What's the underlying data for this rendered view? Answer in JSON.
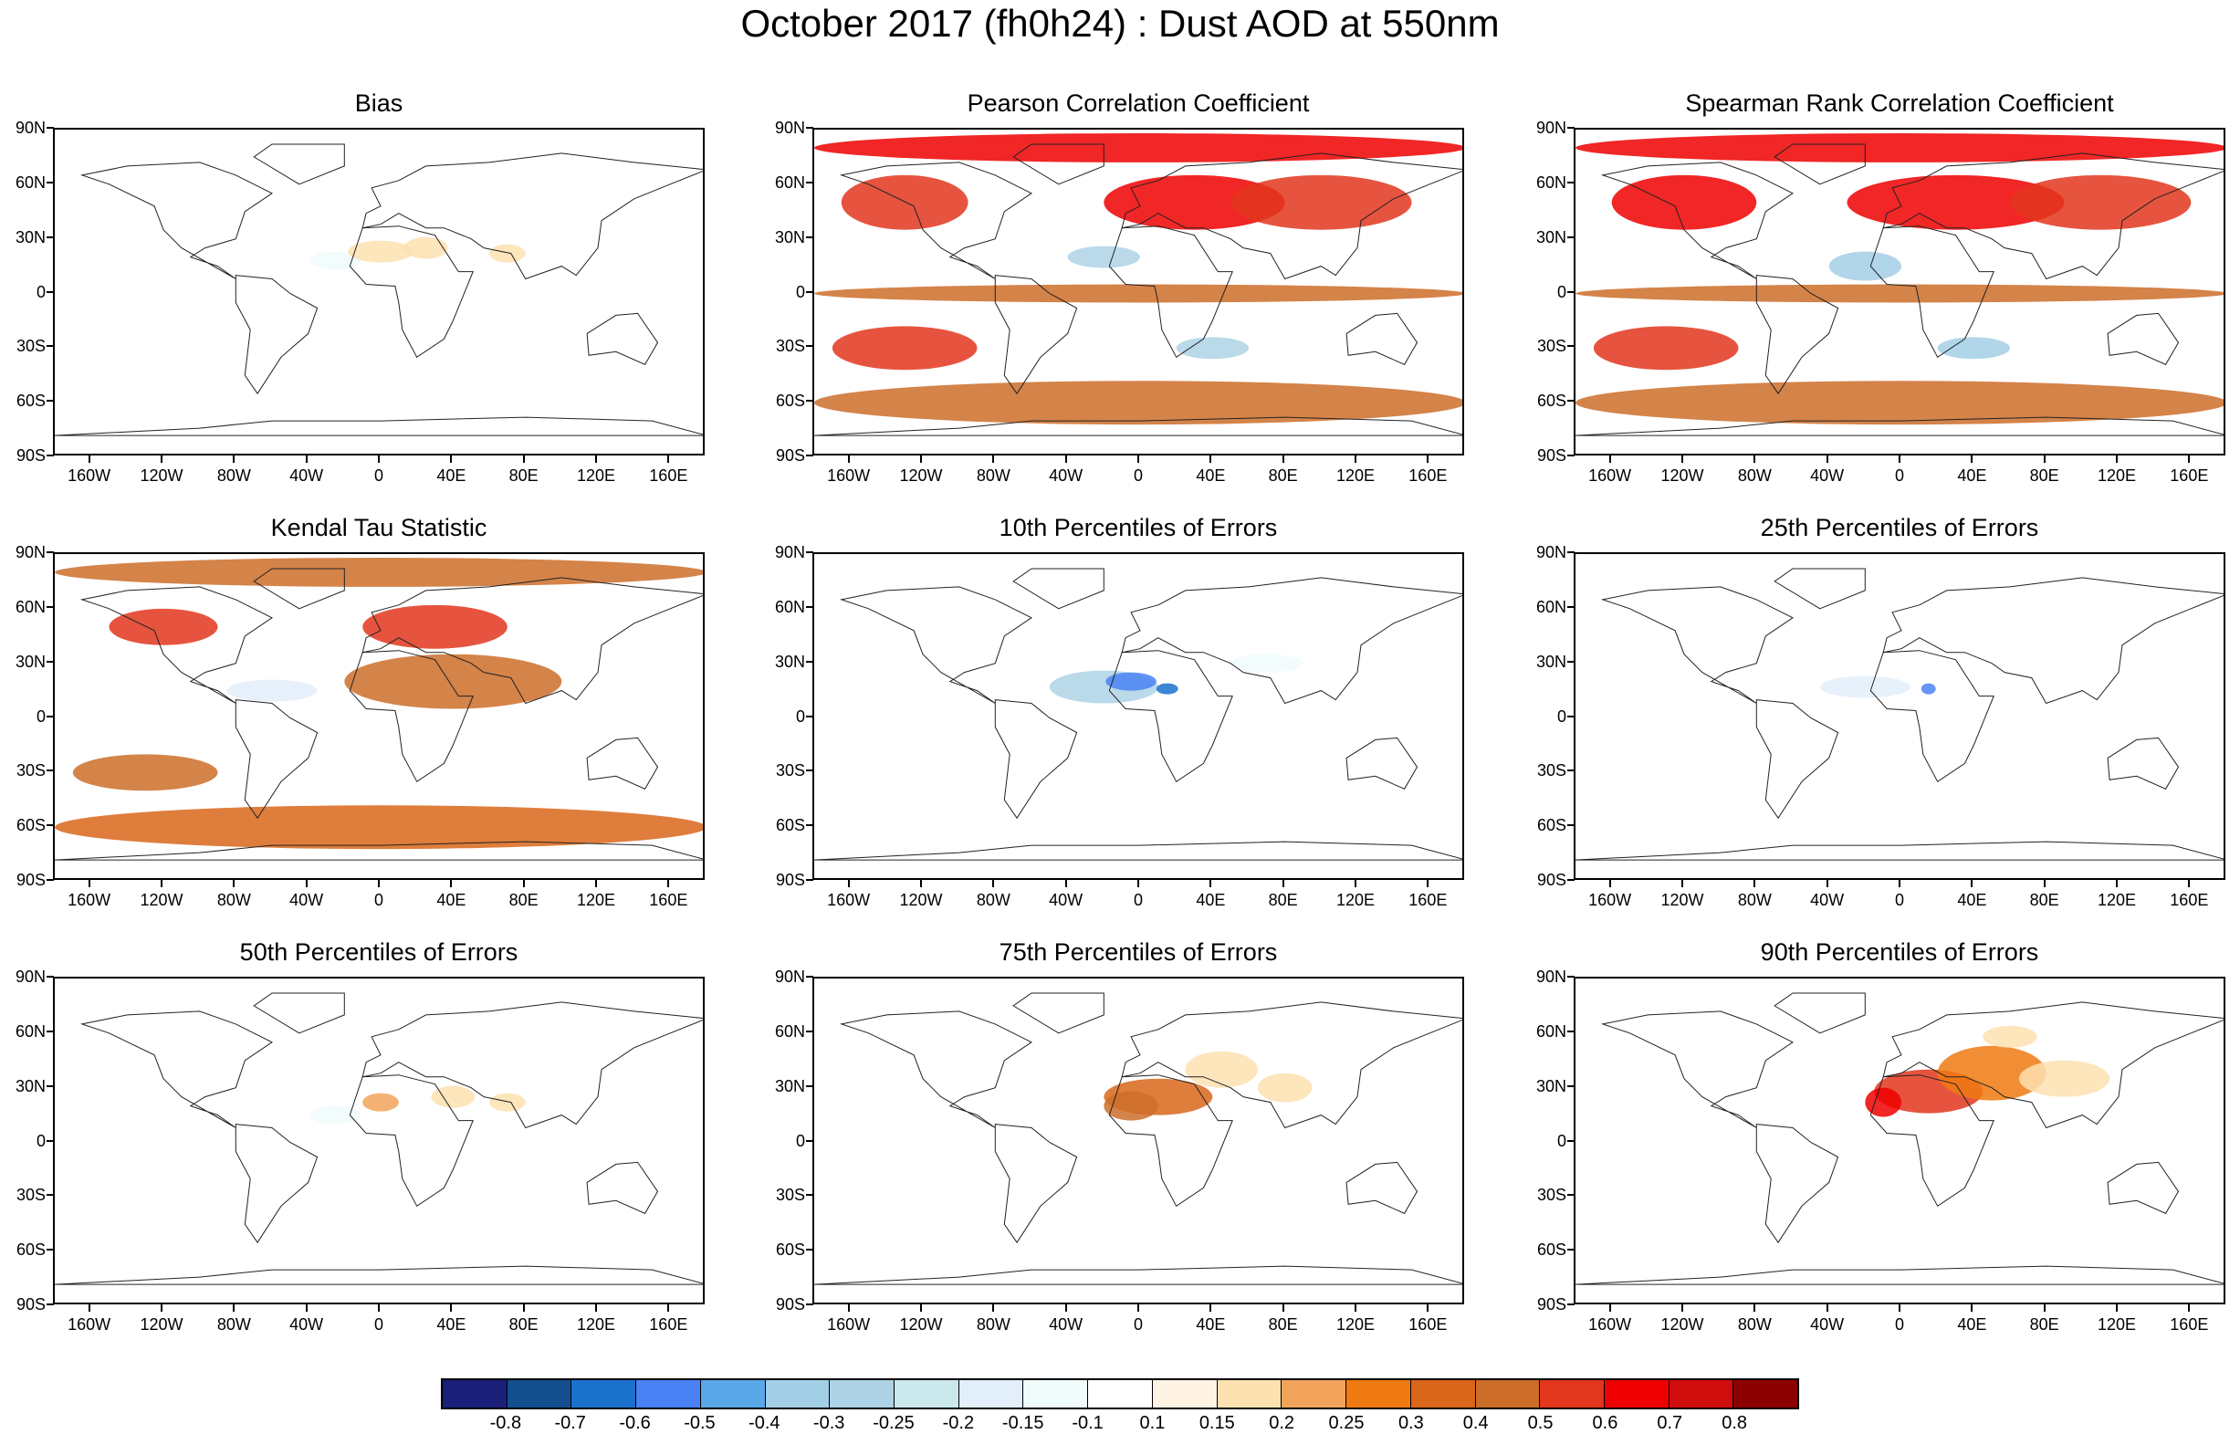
{
  "title": "October 2017 (fh0h24) : Dust AOD at 550nm",
  "lat_ticks": [
    "90N",
    "60N",
    "30N",
    "0",
    "30S",
    "60S",
    "90S"
  ],
  "lon_ticks": [
    "160W",
    "120W",
    "80W",
    "40W",
    "0",
    "40E",
    "80E",
    "120E",
    "160E"
  ],
  "colorbar": {
    "colors": [
      "#1a1f7a",
      "#134f8f",
      "#1a72cc",
      "#4a82f5",
      "#5aa7e8",
      "#a3cfe6",
      "#aed3e6",
      "#cbe9ec",
      "#e2eefa",
      "#f0fcfc",
      "#ffffff",
      "#fff4e4",
      "#fde1b0",
      "#f1a35c",
      "#ef7a12",
      "#d9661a",
      "#cc6d29",
      "#e2361d",
      "#ef0000",
      "#cf0d0d",
      "#8b0000"
    ],
    "labels": [
      "-0.8",
      "-0.7",
      "-0.6",
      "-0.5",
      "-0.4",
      "-0.3",
      "-0.25",
      "-0.2",
      "-0.15",
      "-0.1",
      "0.1",
      "0.15",
      "0.2",
      "0.25",
      "0.3",
      "0.4",
      "0.5",
      "0.6",
      "0.7",
      "0.8"
    ]
  },
  "chart_data": [
    {
      "type": "heatmap",
      "title": "Bias",
      "colors": [
        "#ffffff",
        "#fde1b0",
        "#cbe9ec",
        "#ef7a12",
        "#e2361d"
      ],
      "lon_range": [
        -180,
        180
      ],
      "lat_range": [
        -90,
        90
      ],
      "grid": false,
      "fields": [
        {
          "lon": -25,
          "lat": 18,
          "value": -0.15,
          "rlon": 14,
          "rlat": 5
        },
        {
          "lon": 0,
          "lat": 23,
          "value": 0.15,
          "rlon": 18,
          "rlat": 6
        },
        {
          "lon": 25,
          "lat": 25,
          "value": 0.15,
          "rlon": 12,
          "rlat": 6
        },
        {
          "lon": 70,
          "lat": 22,
          "value": 0.15,
          "rlon": 10,
          "rlat": 5
        }
      ]
    },
    {
      "type": "heatmap",
      "title": "Pearson Correlation Coefficient",
      "colors": [
        "#cc6d29",
        "#e2361d",
        "#ffffff",
        "#5aa7e8"
      ],
      "lon_range": [
        -180,
        180
      ],
      "lat_range": [
        -90,
        90
      ],
      "grid": false,
      "fields": [
        {
          "lon": 0,
          "lat": 80,
          "value": 0.6,
          "rlon": 180,
          "rlat": 8
        },
        {
          "lon": -130,
          "lat": 50,
          "value": 0.5,
          "rlon": 35,
          "rlat": 15
        },
        {
          "lon": 30,
          "lat": 50,
          "value": 0.6,
          "rlon": 50,
          "rlat": 15
        },
        {
          "lon": 100,
          "lat": 50,
          "value": 0.5,
          "rlon": 50,
          "rlat": 15
        },
        {
          "lon": -20,
          "lat": 20,
          "value": -0.3,
          "rlon": 20,
          "rlat": 6
        },
        {
          "lon": 0,
          "lat": 0,
          "value": 0.4,
          "rlon": 180,
          "rlat": 5
        },
        {
          "lon": -130,
          "lat": -30,
          "value": 0.5,
          "rlon": 40,
          "rlat": 12
        },
        {
          "lon": 40,
          "lat": -30,
          "value": -0.3,
          "rlon": 20,
          "rlat": 6
        },
        {
          "lon": 0,
          "lat": -60,
          "value": 0.4,
          "rlon": 180,
          "rlat": 12
        }
      ]
    },
    {
      "type": "heatmap",
      "title": "Spearman Rank Correlation Coefficient",
      "colors": [
        "#cc6d29",
        "#e2361d",
        "#ffffff",
        "#5aa7e8"
      ],
      "lon_range": [
        -180,
        180
      ],
      "lat_range": [
        -90,
        90
      ],
      "grid": false,
      "fields": [
        {
          "lon": 0,
          "lat": 80,
          "value": 0.6,
          "rlon": 180,
          "rlat": 8
        },
        {
          "lon": -120,
          "lat": 50,
          "value": 0.6,
          "rlon": 40,
          "rlat": 15
        },
        {
          "lon": 30,
          "lat": 50,
          "value": 0.6,
          "rlon": 60,
          "rlat": 15
        },
        {
          "lon": 110,
          "lat": 50,
          "value": 0.5,
          "rlon": 50,
          "rlat": 15
        },
        {
          "lon": -20,
          "lat": 15,
          "value": -0.4,
          "rlon": 20,
          "rlat": 8
        },
        {
          "lon": 0,
          "lat": 0,
          "value": 0.4,
          "rlon": 180,
          "rlat": 5
        },
        {
          "lon": -130,
          "lat": -30,
          "value": 0.5,
          "rlon": 40,
          "rlat": 12
        },
        {
          "lon": 40,
          "lat": -30,
          "value": -0.4,
          "rlon": 20,
          "rlat": 6
        },
        {
          "lon": 0,
          "lat": -60,
          "value": 0.4,
          "rlon": 180,
          "rlat": 12
        }
      ]
    },
    {
      "type": "heatmap",
      "title": "Kendal Tau Statistic",
      "colors": [
        "#cc6d29",
        "#e2361d",
        "#ffffff",
        "#a3cfe6"
      ],
      "lon_range": [
        -180,
        180
      ],
      "lat_range": [
        -90,
        90
      ],
      "grid": false,
      "fields": [
        {
          "lon": 0,
          "lat": 80,
          "value": 0.4,
          "rlon": 180,
          "rlat": 8
        },
        {
          "lon": 30,
          "lat": 50,
          "value": 0.5,
          "rlon": 40,
          "rlat": 12
        },
        {
          "lon": -120,
          "lat": 50,
          "value": 0.5,
          "rlon": 30,
          "rlat": 10
        },
        {
          "lon": 40,
          "lat": 20,
          "value": 0.4,
          "rlon": 60,
          "rlat": 15
        },
        {
          "lon": -60,
          "lat": 15,
          "value": -0.2,
          "rlon": 25,
          "rlat": 6
        },
        {
          "lon": -130,
          "lat": -30,
          "value": 0.4,
          "rlon": 40,
          "rlat": 10
        },
        {
          "lon": 0,
          "lat": -60,
          "value": 0.3,
          "rlon": 180,
          "rlat": 12
        }
      ]
    },
    {
      "type": "heatmap",
      "title": "10th Percentiles of Errors",
      "colors": [
        "#ffffff",
        "#a3cfe6",
        "#4a82f5",
        "#134f8f"
      ],
      "lon_range": [
        -180,
        180
      ],
      "lat_range": [
        -90,
        90
      ],
      "grid": false,
      "fields": [
        {
          "lon": -20,
          "lat": 17,
          "value": -0.3,
          "rlon": 30,
          "rlat": 9
        },
        {
          "lon": -5,
          "lat": 20,
          "value": -0.6,
          "rlon": 14,
          "rlat": 5
        },
        {
          "lon": 15,
          "lat": 16,
          "value": -0.7,
          "rlon": 6,
          "rlat": 3
        },
        {
          "lon": 70,
          "lat": 30,
          "value": -0.15,
          "rlon": 20,
          "rlat": 5
        }
      ]
    },
    {
      "type": "heatmap",
      "title": "25th Percentiles of Errors",
      "colors": [
        "#ffffff",
        "#a3cfe6",
        "#4a82f5",
        "#134f8f"
      ],
      "lon_range": [
        -180,
        180
      ],
      "lat_range": [
        -90,
        90
      ],
      "grid": false,
      "fields": [
        {
          "lon": -20,
          "lat": 17,
          "value": -0.2,
          "rlon": 25,
          "rlat": 6
        },
        {
          "lon": 15,
          "lat": 16,
          "value": -0.6,
          "rlon": 4,
          "rlat": 3
        }
      ]
    },
    {
      "type": "heatmap",
      "title": "50th Percentiles of Errors",
      "colors": [
        "#ffffff",
        "#cbe9ec",
        "#fde1b0",
        "#ef7a12"
      ],
      "lon_range": [
        -180,
        180
      ],
      "lat_range": [
        -90,
        90
      ],
      "grid": false,
      "fields": [
        {
          "lon": -25,
          "lat": 15,
          "value": -0.15,
          "rlon": 14,
          "rlat": 5
        },
        {
          "lon": 0,
          "lat": 22,
          "value": 0.2,
          "rlon": 10,
          "rlat": 5
        },
        {
          "lon": 40,
          "lat": 25,
          "value": 0.15,
          "rlon": 12,
          "rlat": 6
        },
        {
          "lon": 70,
          "lat": 22,
          "value": 0.15,
          "rlon": 10,
          "rlat": 5
        }
      ]
    },
    {
      "type": "heatmap",
      "title": "75th Percentiles of Errors",
      "colors": [
        "#ffffff",
        "#fde1b0",
        "#f1a35c",
        "#cc6d29"
      ],
      "lon_range": [
        -180,
        180
      ],
      "lat_range": [
        -90,
        90
      ],
      "grid": false,
      "fields": [
        {
          "lon": 10,
          "lat": 25,
          "value": 0.3,
          "rlon": 30,
          "rlat": 10
        },
        {
          "lon": -5,
          "lat": 20,
          "value": 0.4,
          "rlon": 15,
          "rlat": 8
        },
        {
          "lon": 45,
          "lat": 40,
          "value": 0.15,
          "rlon": 20,
          "rlat": 10
        },
        {
          "lon": 80,
          "lat": 30,
          "value": 0.15,
          "rlon": 15,
          "rlat": 8
        }
      ]
    },
    {
      "type": "heatmap",
      "title": "90th Percentiles of Errors",
      "colors": [
        "#ffffff",
        "#fde1b0",
        "#f1a35c",
        "#cc6d29",
        "#e2361d"
      ],
      "lon_range": [
        -180,
        180
      ],
      "lat_range": [
        -90,
        90
      ],
      "grid": false,
      "fields": [
        {
          "lon": 15,
          "lat": 28,
          "value": 0.5,
          "rlon": 30,
          "rlat": 12
        },
        {
          "lon": -10,
          "lat": 22,
          "value": 0.6,
          "rlon": 10,
          "rlat": 8
        },
        {
          "lon": 50,
          "lat": 38,
          "value": 0.25,
          "rlon": 30,
          "rlat": 15
        },
        {
          "lon": 90,
          "lat": 35,
          "value": 0.15,
          "rlon": 25,
          "rlat": 10
        },
        {
          "lon": 60,
          "lat": 58,
          "value": 0.15,
          "rlon": 15,
          "rlat": 6
        }
      ]
    }
  ]
}
